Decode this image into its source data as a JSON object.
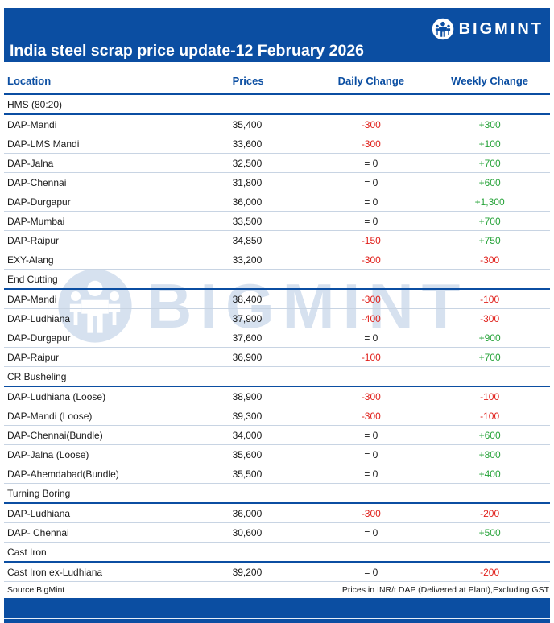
{
  "brand": {
    "name": "BIGMINT"
  },
  "title": "India steel scrap price update-12 February 2026",
  "columns": [
    "Location",
    "Prices",
    "Daily Change",
    "Weekly Change"
  ],
  "rows": [
    {
      "type": "section",
      "label": "HMS (80:20)"
    },
    {
      "type": "data",
      "location": "DAP-Mandi",
      "price": "35,400",
      "daily": "-300",
      "weekly": "+300"
    },
    {
      "type": "data",
      "location": "DAP-LMS Mandi",
      "price": "33,600",
      "daily": "-300",
      "weekly": "+100"
    },
    {
      "type": "data",
      "location": "DAP-Jalna",
      "price": "32,500",
      "daily": "= 0",
      "weekly": "+700"
    },
    {
      "type": "data",
      "location": "DAP-Chennai",
      "price": "31,800",
      "daily": "= 0",
      "weekly": "+600"
    },
    {
      "type": "data",
      "location": "DAP-Durgapur",
      "price": "36,000",
      "daily": "= 0",
      "weekly": "+1,300"
    },
    {
      "type": "data",
      "location": "DAP-Mumbai",
      "price": "33,500",
      "daily": "= 0",
      "weekly": "+700"
    },
    {
      "type": "data",
      "location": "DAP-Raipur",
      "price": "34,850",
      "daily": "-150",
      "weekly": "+750"
    },
    {
      "type": "data",
      "location": "EXY-Alang",
      "price": "33,200",
      "daily": "-300",
      "weekly": "-300"
    },
    {
      "type": "section",
      "label": "End Cutting"
    },
    {
      "type": "data",
      "location": "DAP-Mandi",
      "price": "38,400",
      "daily": "-300",
      "weekly": "-100"
    },
    {
      "type": "data",
      "location": "DAP-Ludhiana",
      "price": "37,900",
      "daily": "-400",
      "weekly": "-300"
    },
    {
      "type": "data",
      "location": "DAP-Durgapur",
      "price": "37,600",
      "daily": "= 0",
      "weekly": "+900"
    },
    {
      "type": "data",
      "location": "DAP-Raipur",
      "price": "36,900",
      "daily": "-100",
      "weekly": "+700"
    },
    {
      "type": "section",
      "label": "CR Busheling"
    },
    {
      "type": "data",
      "location": "DAP-Ludhiana (Loose)",
      "price": "38,900",
      "daily": "-300",
      "weekly": "-100"
    },
    {
      "type": "data",
      "location": "DAP-Mandi (Loose)",
      "price": "39,300",
      "daily": "-300",
      "weekly": "-100"
    },
    {
      "type": "data",
      "location": "DAP-Chennai(Bundle)",
      "price": "34,000",
      "daily": "= 0",
      "weekly": "+600"
    },
    {
      "type": "data",
      "location": "DAP-Jalna (Loose)",
      "price": "35,600",
      "daily": "= 0",
      "weekly": "+800"
    },
    {
      "type": "data",
      "location": "DAP-Ahemdabad(Bundle)",
      "price": "35,500",
      "daily": "= 0",
      "weekly": "+400"
    },
    {
      "type": "section",
      "label": "Turning Boring"
    },
    {
      "type": "data",
      "location": "DAP-Ludhiana",
      "price": "36,000",
      "daily": "-300",
      "weekly": "-200"
    },
    {
      "type": "data",
      "location": "DAP- Chennai",
      "price": "30,600",
      "daily": "= 0",
      "weekly": "+500"
    },
    {
      "type": "section",
      "label": "Cast Iron"
    },
    {
      "type": "data",
      "location": "Cast Iron ex-Ludhiana",
      "price": "39,200",
      "daily": "= 0",
      "weekly": "-200"
    }
  ],
  "footer": {
    "source": "Source:BigMint",
    "note": "Prices in INR/t DAP (Delivered at Plant),Excluding GST"
  },
  "colors": {
    "brand_blue": "#0b4ea2",
    "negative": "#e0201b",
    "positive": "#27a33a"
  }
}
